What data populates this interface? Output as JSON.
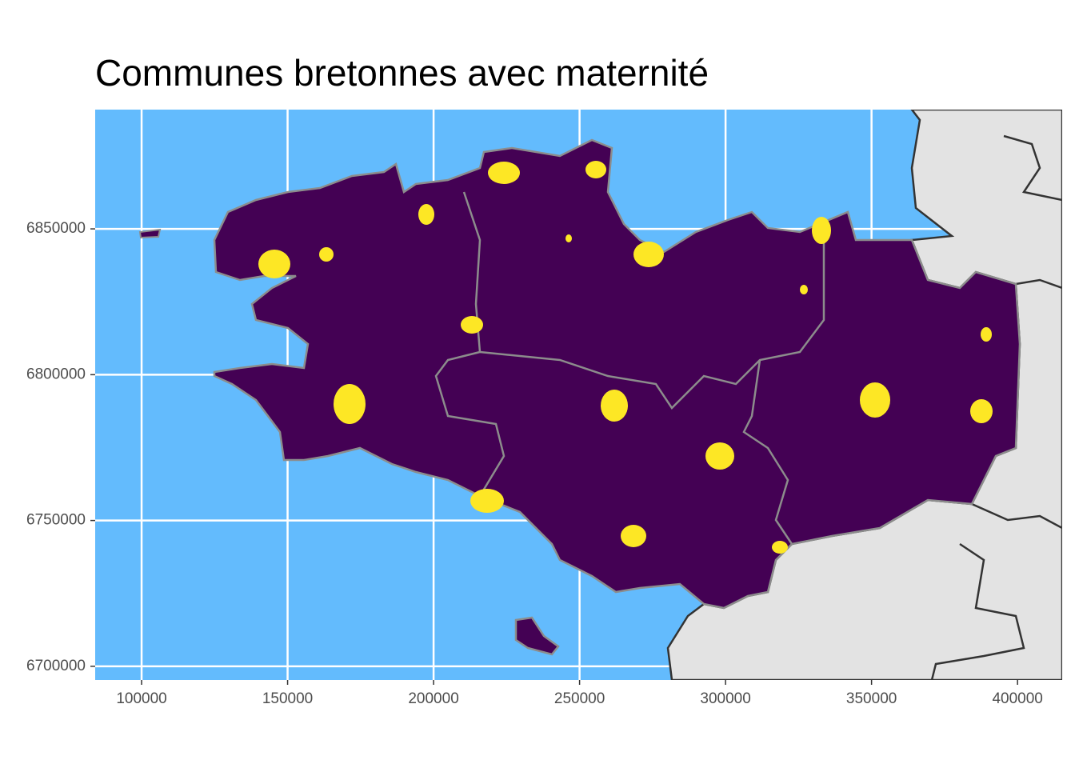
{
  "chart_data": {
    "type": "map",
    "title": "Communes bretonnes avec maternité",
    "xlim": [
      84100,
      415300
    ],
    "xticks": [
      100000,
      150000,
      200000,
      250000,
      300000,
      350000,
      400000
    ],
    "ylim": [
      6695300,
      6890900
    ],
    "yticks": [
      6700000,
      6750000,
      6800000,
      6850000
    ],
    "grid": true
  }
}
